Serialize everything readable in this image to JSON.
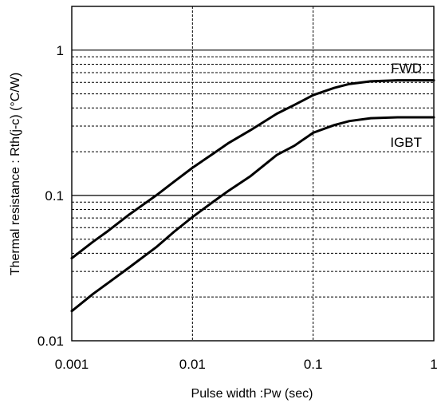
{
  "chart_data": {
    "type": "line",
    "title": "",
    "xlabel": "Pulse width :Pw (sec)",
    "ylabel": "Thermal resistance : Rth(j-c)  (°C/W)",
    "x_scale": "log",
    "y_scale": "log",
    "xlim": [
      0.001,
      1
    ],
    "ylim": [
      0.01,
      2
    ],
    "x_ticks": [
      0.001,
      0.01,
      0.1,
      1
    ],
    "x_tick_labels": [
      "0.001",
      "0.01",
      "0.1",
      "1"
    ],
    "y_ticks": [
      0.01,
      0.1,
      1
    ],
    "y_tick_labels": [
      "0.01",
      "0.1",
      "1"
    ],
    "grid": true,
    "legend": "none",
    "series": [
      {
        "name": "FWD",
        "x": [
          0.001,
          0.0015,
          0.002,
          0.003,
          0.005,
          0.007,
          0.01,
          0.015,
          0.02,
          0.03,
          0.05,
          0.07,
          0.1,
          0.15,
          0.2,
          0.3,
          0.5,
          0.7,
          1
        ],
        "y": [
          0.037,
          0.048,
          0.057,
          0.074,
          0.1,
          0.124,
          0.155,
          0.195,
          0.23,
          0.28,
          0.365,
          0.42,
          0.49,
          0.55,
          0.585,
          0.61,
          0.62,
          0.62,
          0.62
        ]
      },
      {
        "name": "IGBT",
        "x": [
          0.001,
          0.0015,
          0.002,
          0.003,
          0.005,
          0.007,
          0.01,
          0.015,
          0.02,
          0.03,
          0.05,
          0.07,
          0.1,
          0.15,
          0.2,
          0.3,
          0.5,
          0.7,
          1
        ],
        "y": [
          0.016,
          0.021,
          0.025,
          0.032,
          0.044,
          0.056,
          0.071,
          0.091,
          0.108,
          0.135,
          0.19,
          0.22,
          0.27,
          0.305,
          0.325,
          0.34,
          0.345,
          0.345,
          0.345
        ]
      }
    ]
  },
  "colors": {
    "line": "#000000",
    "grid": "#000000",
    "background": "#ffffff"
  }
}
